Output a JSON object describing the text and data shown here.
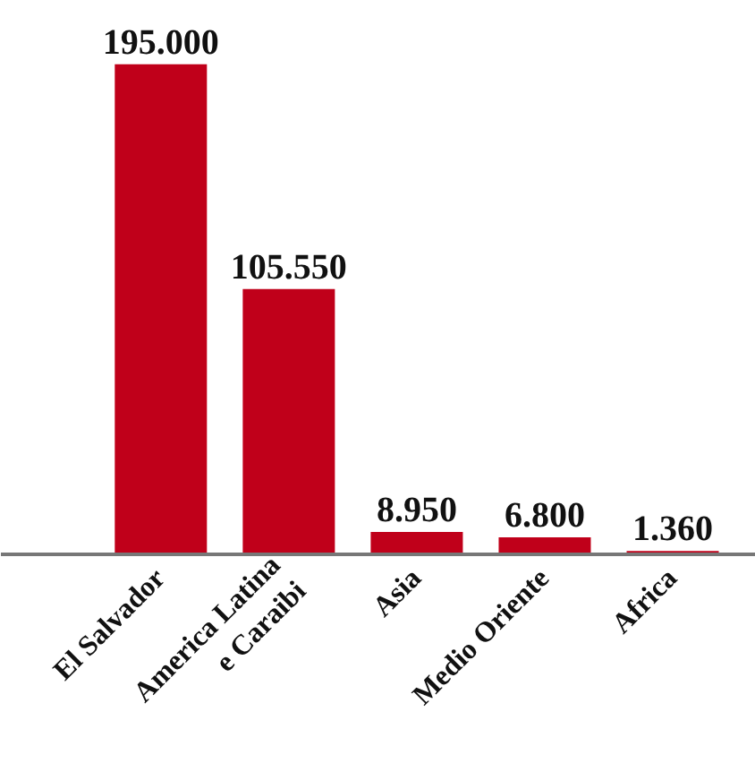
{
  "chart_data": {
    "type": "bar",
    "categories": [
      "El Salvador",
      "America Latina\ne Caraibi",
      "Asia",
      "Medio Oriente",
      "Africa"
    ],
    "values": [
      195000,
      105550,
      8950,
      6800,
      1360
    ],
    "value_labels": [
      "195.000",
      "105.550",
      "8.950",
      "6.800",
      "1.360"
    ],
    "color": "#c0001a",
    "grid": false
  }
}
